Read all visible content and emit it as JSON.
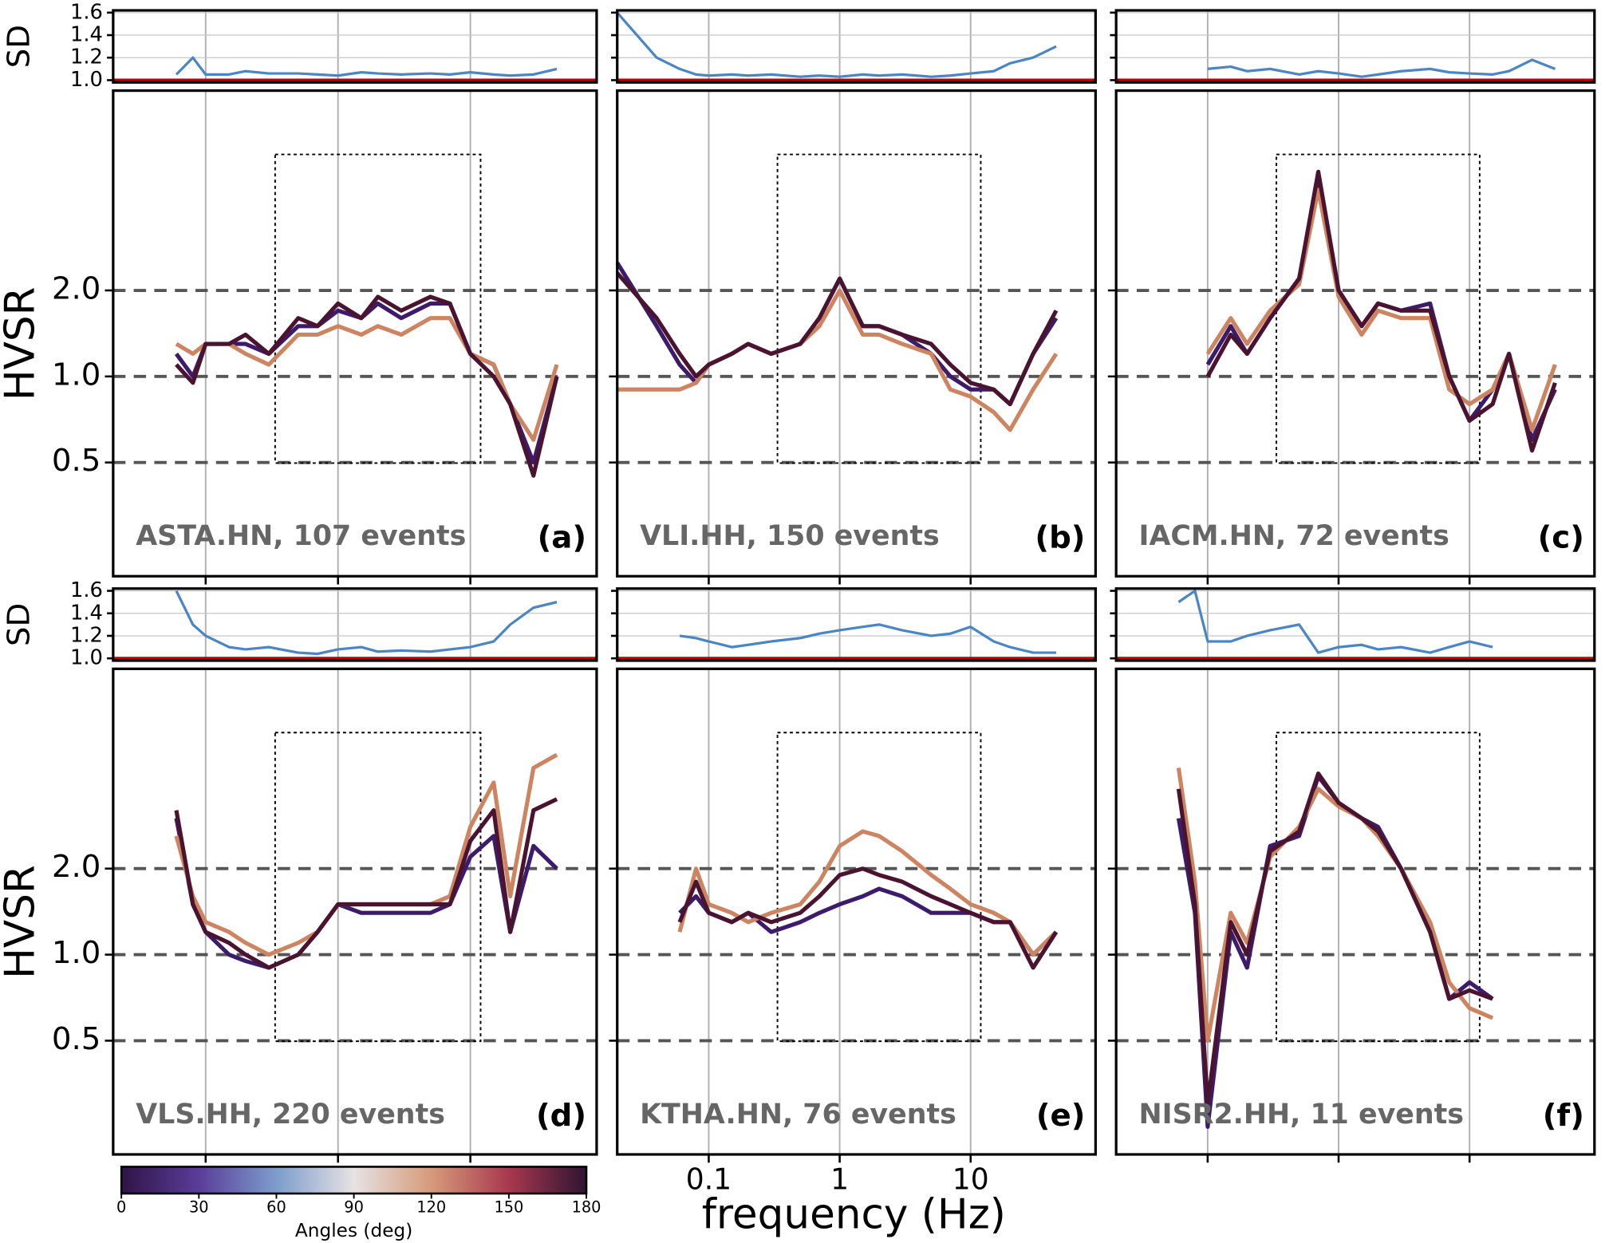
{
  "chart_data": [
    {
      "type": "line",
      "annotation": "ASTA.HN, 107 events",
      "panel_label": "(a)",
      "ylabel": "HVSR",
      "sd_label": "SD",
      "x": [
        0.02,
        0.04,
        0.06,
        0.08,
        0.1,
        0.15,
        0.2,
        0.3,
        0.5,
        0.7,
        1,
        1.5,
        2,
        3,
        5,
        7,
        10,
        15,
        20,
        30,
        45,
        60
      ],
      "xlim": [
        0.02,
        90
      ],
      "xticks": [
        0.1,
        1,
        10
      ],
      "show_xtick_labels": false,
      "log_x": true,
      "log_y": true,
      "ylim": [
        0.2,
        10
      ],
      "yticks": [
        0.5,
        {
          "value": 1,
          "label": "1.0"
        },
        {
          "value": 2,
          "label": "2.0"
        }
      ],
      "show_ytick_labels": true,
      "grid": true,
      "sd": {
        "color": "#4a86c5",
        "ylim": [
          0.98,
          1.62
        ],
        "yticks": [
          {
            "value": 1,
            "label": "1.0"
          },
          1.2,
          1.4,
          1.6
        ],
        "reference_line": {
          "value": 1,
          "color": "#c00000"
        },
        "values": [
          null,
          null,
          1.05,
          1.2,
          1.05,
          1.05,
          1.08,
          1.06,
          1.06,
          1.05,
          1.04,
          1.07,
          1.06,
          1.05,
          1.06,
          1.05,
          1.07,
          1.05,
          1.04,
          1.05,
          1.1,
          null
        ]
      },
      "series": [
        {
          "color": "#3d1b6b",
          "values": [
            null,
            null,
            1.2,
            1.0,
            1.3,
            1.3,
            1.3,
            1.2,
            1.5,
            1.5,
            1.7,
            1.6,
            1.8,
            1.6,
            1.8,
            1.8,
            1.2,
            1.1,
            0.8,
            0.5,
            1.0,
            null
          ]
        },
        {
          "color": "#cd8460",
          "values": [
            null,
            null,
            1.3,
            1.2,
            1.3,
            1.3,
            1.2,
            1.1,
            1.4,
            1.4,
            1.5,
            1.4,
            1.5,
            1.4,
            1.6,
            1.6,
            1.2,
            1.1,
            0.8,
            0.6,
            1.1,
            null
          ]
        },
        {
          "color": "#4a1430",
          "values": [
            null,
            null,
            1.1,
            0.95,
            1.3,
            1.3,
            1.4,
            1.2,
            1.6,
            1.5,
            1.8,
            1.6,
            1.9,
            1.7,
            1.9,
            1.8,
            1.2,
            1.0,
            0.8,
            0.45,
            1.0,
            null
          ]
        }
      ]
    },
    {
      "type": "line",
      "annotation": "VLI.HH, 150 events",
      "panel_label": "(b)",
      "x": [
        0.02,
        0.04,
        0.06,
        0.08,
        0.1,
        0.15,
        0.2,
        0.3,
        0.5,
        0.7,
        1,
        1.5,
        2,
        3,
        5,
        7,
        10,
        15,
        20,
        30,
        45,
        60
      ],
      "xlim": [
        0.02,
        90
      ],
      "xticks": [
        0.1,
        1,
        10
      ],
      "show_xtick_labels": false,
      "log_x": true,
      "log_y": true,
      "ylim": [
        0.2,
        10
      ],
      "yticks": [
        0.5,
        {
          "value": 1,
          "label": "1.0"
        },
        {
          "value": 2,
          "label": "2.0"
        }
      ],
      "show_ytick_labels": false,
      "grid": true,
      "sd": {
        "color": "#4a86c5",
        "ylim": [
          0.98,
          1.62
        ],
        "yticks": [
          {
            "value": 1,
            "label": "1.0"
          },
          1.2,
          1.4,
          1.6
        ],
        "reference_line": {
          "value": 1,
          "color": "#c00000"
        },
        "values": [
          1.6,
          1.2,
          1.1,
          1.05,
          1.04,
          1.05,
          1.04,
          1.05,
          1.03,
          1.04,
          1.03,
          1.05,
          1.04,
          1.05,
          1.03,
          1.04,
          1.06,
          1.08,
          1.15,
          1.2,
          1.3,
          null
        ]
      },
      "series": [
        {
          "color": "#3d1b6b",
          "values": [
            2.5,
            1.5,
            1.1,
            0.95,
            1.1,
            1.2,
            1.3,
            1.2,
            1.3,
            1.6,
            2.2,
            1.5,
            1.5,
            1.4,
            1.2,
            1.0,
            0.9,
            0.9,
            0.8,
            1.2,
            1.6,
            null
          ]
        },
        {
          "color": "#cd8460",
          "values": [
            0.9,
            0.9,
            0.9,
            0.95,
            1.1,
            1.2,
            1.3,
            1.2,
            1.3,
            1.5,
            2.0,
            1.4,
            1.4,
            1.3,
            1.2,
            0.9,
            0.85,
            0.75,
            0.65,
            0.9,
            1.2,
            null
          ]
        },
        {
          "color": "#4a1430",
          "values": [
            2.3,
            1.6,
            1.2,
            1.0,
            1.1,
            1.2,
            1.3,
            1.2,
            1.3,
            1.6,
            2.2,
            1.5,
            1.5,
            1.4,
            1.3,
            1.1,
            0.95,
            0.9,
            0.8,
            1.2,
            1.7,
            null
          ]
        }
      ]
    },
    {
      "type": "line",
      "annotation": "IACM.HN,  72 events",
      "panel_label": "(c)",
      "x": [
        0.02,
        0.04,
        0.06,
        0.08,
        0.1,
        0.15,
        0.2,
        0.3,
        0.5,
        0.7,
        1,
        1.5,
        2,
        3,
        5,
        7,
        10,
        15,
        20,
        30,
        45,
        60
      ],
      "xlim": [
        0.02,
        90
      ],
      "xticks": [
        0.1,
        1,
        10
      ],
      "show_xtick_labels": false,
      "log_x": true,
      "log_y": true,
      "ylim": [
        0.2,
        10
      ],
      "yticks": [
        0.5,
        {
          "value": 1,
          "label": "1.0"
        },
        {
          "value": 2,
          "label": "2.0"
        }
      ],
      "show_ytick_labels": false,
      "grid": true,
      "sd": {
        "color": "#4a86c5",
        "ylim": [
          0.98,
          1.62
        ],
        "yticks": [
          {
            "value": 1,
            "label": "1.0"
          },
          1.2,
          1.4,
          1.6
        ],
        "reference_line": {
          "value": 1,
          "color": "#c00000"
        },
        "values": [
          null,
          null,
          null,
          null,
          1.1,
          1.12,
          1.08,
          1.1,
          1.05,
          1.08,
          1.06,
          1.03,
          1.05,
          1.08,
          1.1,
          1.07,
          1.06,
          1.05,
          1.08,
          1.18,
          1.1,
          null
        ]
      },
      "series": [
        {
          "color": "#3d1b6b",
          "values": [
            null,
            null,
            null,
            null,
            1.1,
            1.5,
            1.2,
            1.6,
            2.2,
            4.8,
            2.0,
            1.5,
            1.8,
            1.7,
            1.8,
            1.0,
            0.7,
            0.9,
            1.2,
            0.6,
            0.9,
            null
          ]
        },
        {
          "color": "#cd8460",
          "values": [
            null,
            null,
            null,
            null,
            1.2,
            1.6,
            1.3,
            1.7,
            2.1,
            4.5,
            1.9,
            1.4,
            1.7,
            1.6,
            1.6,
            0.9,
            0.8,
            0.9,
            1.2,
            0.65,
            1.1,
            null
          ]
        },
        {
          "color": "#4a1430",
          "values": [
            null,
            null,
            null,
            null,
            1.0,
            1.4,
            1.2,
            1.6,
            2.2,
            5.2,
            2.0,
            1.5,
            1.8,
            1.7,
            1.7,
            1.0,
            0.7,
            0.8,
            1.2,
            0.55,
            0.95,
            null
          ]
        }
      ]
    },
    {
      "type": "line",
      "annotation": "VLS.HH, 220 events",
      "panel_label": "(d)",
      "ylabel": "HVSR",
      "sd_label": "SD",
      "x": [
        0.02,
        0.04,
        0.06,
        0.08,
        0.1,
        0.15,
        0.2,
        0.3,
        0.5,
        0.7,
        1,
        1.5,
        2,
        3,
        5,
        7,
        10,
        15,
        20,
        30,
        45,
        60
      ],
      "xlim": [
        0.02,
        90
      ],
      "xticks": [
        0.1,
        1,
        10
      ],
      "show_xtick_labels": false,
      "log_x": true,
      "log_y": true,
      "ylim": [
        0.2,
        10
      ],
      "yticks": [
        0.5,
        {
          "value": 1,
          "label": "1.0"
        },
        {
          "value": 2,
          "label": "2.0"
        }
      ],
      "show_ytick_labels": true,
      "grid": true,
      "sd": {
        "color": "#4a86c5",
        "ylim": [
          0.98,
          1.62
        ],
        "yticks": [
          {
            "value": 1,
            "label": "1.0"
          },
          1.2,
          1.4,
          1.6
        ],
        "reference_line": {
          "value": 1,
          "color": "#c00000"
        },
        "values": [
          null,
          null,
          1.6,
          1.3,
          1.2,
          1.1,
          1.08,
          1.1,
          1.05,
          1.04,
          1.08,
          1.1,
          1.06,
          1.07,
          1.06,
          1.08,
          1.1,
          1.15,
          1.3,
          1.45,
          1.5,
          null
        ]
      },
      "series": [
        {
          "color": "#3d1b6b",
          "values": [
            null,
            null,
            3.0,
            1.5,
            1.2,
            1.0,
            0.95,
            0.9,
            1.0,
            1.2,
            1.5,
            1.4,
            1.4,
            1.4,
            1.4,
            1.5,
            2.2,
            2.6,
            1.2,
            2.4,
            2.0,
            null
          ]
        },
        {
          "color": "#cd8460",
          "values": [
            null,
            null,
            2.6,
            1.6,
            1.3,
            1.2,
            1.1,
            1.0,
            1.1,
            1.2,
            1.5,
            1.5,
            1.5,
            1.5,
            1.5,
            1.6,
            2.8,
            4.0,
            1.6,
            4.5,
            5.0,
            null
          ]
        },
        {
          "color": "#4a1430",
          "values": [
            null,
            null,
            3.2,
            1.5,
            1.2,
            1.1,
            1.0,
            0.9,
            1.0,
            1.2,
            1.5,
            1.5,
            1.5,
            1.5,
            1.5,
            1.5,
            2.5,
            3.2,
            1.2,
            3.2,
            3.5,
            null
          ]
        }
      ]
    },
    {
      "type": "line",
      "annotation": "KTHA.HN,  76 events",
      "panel_label": "(e)",
      "x": [
        0.02,
        0.04,
        0.06,
        0.08,
        0.1,
        0.15,
        0.2,
        0.3,
        0.5,
        0.7,
        1,
        1.5,
        2,
        3,
        5,
        7,
        10,
        15,
        20,
        30,
        45,
        60
      ],
      "xlim": [
        0.02,
        90
      ],
      "xticks": [
        0.1,
        1,
        10
      ],
      "show_xtick_labels": true,
      "log_x": true,
      "log_y": true,
      "ylim": [
        0.2,
        10
      ],
      "yticks": [
        0.5,
        {
          "value": 1,
          "label": "1.0"
        },
        {
          "value": 2,
          "label": "2.0"
        }
      ],
      "show_ytick_labels": false,
      "grid": true,
      "sd": {
        "color": "#4a86c5",
        "ylim": [
          0.98,
          1.62
        ],
        "yticks": [
          {
            "value": 1,
            "label": "1.0"
          },
          1.2,
          1.4,
          1.6
        ],
        "reference_line": {
          "value": 1,
          "color": "#c00000"
        },
        "values": [
          null,
          null,
          1.2,
          1.18,
          1.15,
          1.1,
          1.12,
          1.15,
          1.18,
          1.22,
          1.25,
          1.28,
          1.3,
          1.25,
          1.2,
          1.22,
          1.28,
          1.15,
          1.1,
          1.05,
          1.05,
          null
        ]
      },
      "series": [
        {
          "color": "#3d1b6b",
          "values": [
            null,
            null,
            1.4,
            1.6,
            1.4,
            1.3,
            1.4,
            1.2,
            1.3,
            1.4,
            1.5,
            1.6,
            1.7,
            1.6,
            1.4,
            1.4,
            1.4,
            1.3,
            1.3,
            1.0,
            1.2,
            null
          ]
        },
        {
          "color": "#cd8460",
          "values": [
            null,
            null,
            1.2,
            2.0,
            1.5,
            1.4,
            1.3,
            1.4,
            1.5,
            1.8,
            2.4,
            2.7,
            2.6,
            2.3,
            1.9,
            1.7,
            1.5,
            1.4,
            1.3,
            1.0,
            1.2,
            null
          ]
        },
        {
          "color": "#4a1430",
          "values": [
            null,
            null,
            1.3,
            1.8,
            1.4,
            1.3,
            1.4,
            1.3,
            1.4,
            1.6,
            1.9,
            2.0,
            1.9,
            1.8,
            1.6,
            1.5,
            1.4,
            1.3,
            1.3,
            0.9,
            1.2,
            null
          ]
        }
      ]
    },
    {
      "type": "line",
      "annotation": "NISR2.HH,  11 events",
      "panel_label": "(f)",
      "x": [
        0.02,
        0.04,
        0.06,
        0.08,
        0.1,
        0.15,
        0.2,
        0.3,
        0.5,
        0.7,
        1,
        1.5,
        2,
        3,
        5,
        7,
        10,
        15,
        20,
        30,
        45,
        60
      ],
      "xlim": [
        0.02,
        90
      ],
      "xticks": [
        0.1,
        1,
        10
      ],
      "show_xtick_labels": false,
      "log_x": true,
      "log_y": true,
      "ylim": [
        0.2,
        10
      ],
      "yticks": [
        0.5,
        {
          "value": 1,
          "label": "1.0"
        },
        {
          "value": 2,
          "label": "2.0"
        }
      ],
      "show_ytick_labels": false,
      "grid": true,
      "sd": {
        "color": "#4a86c5",
        "ylim": [
          0.98,
          1.62
        ],
        "yticks": [
          {
            "value": 1,
            "label": "1.0"
          },
          1.2,
          1.4,
          1.6
        ],
        "reference_line": {
          "value": 1,
          "color": "#c00000"
        },
        "values": [
          null,
          null,
          1.5,
          1.6,
          1.15,
          1.15,
          1.2,
          1.25,
          1.3,
          1.05,
          1.1,
          1.12,
          1.08,
          1.1,
          1.05,
          1.1,
          1.15,
          1.1,
          null,
          null,
          null,
          null
        ]
      },
      "series": [
        {
          "color": "#3d1b6b",
          "values": [
            null,
            null,
            3.0,
            1.4,
            0.25,
            1.2,
            0.9,
            2.4,
            2.6,
            4.2,
            3.4,
            3.0,
            2.8,
            2.0,
            1.2,
            0.7,
            0.8,
            0.7,
            null,
            null,
            null,
            null
          ]
        },
        {
          "color": "#cd8460",
          "values": [
            null,
            null,
            4.5,
            1.8,
            0.5,
            1.4,
            1.1,
            2.2,
            2.8,
            3.8,
            3.3,
            3.0,
            2.6,
            2.0,
            1.3,
            0.8,
            0.65,
            0.6,
            null,
            null,
            null,
            null
          ]
        },
        {
          "color": "#4a1430",
          "values": [
            null,
            null,
            3.8,
            1.5,
            0.3,
            1.3,
            1.0,
            2.3,
            2.7,
            4.3,
            3.4,
            3.0,
            2.7,
            2.0,
            1.2,
            0.7,
            0.75,
            0.7,
            null,
            null,
            null,
            null
          ]
        }
      ]
    }
  ],
  "figure": {
    "xlabel": "frequency (Hz)",
    "colorbar": {
      "label": "Angles (deg)",
      "lim": [
        0,
        180
      ],
      "ticks": [
        0,
        30,
        60,
        90,
        120,
        150,
        180
      ],
      "colors": [
        "#2f1446",
        "#5a3d9a",
        "#7d9ccc",
        "#e6e2e3",
        "#d69a7a",
        "#a8384f",
        "#2f1432"
      ]
    }
  }
}
